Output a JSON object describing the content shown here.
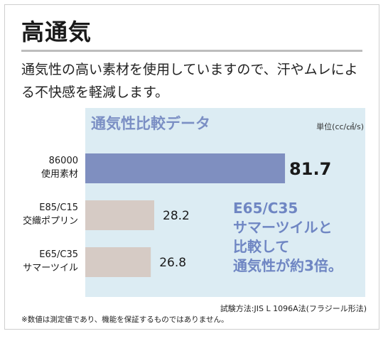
{
  "headline": "高通気",
  "body_text": "通気性の高い素材を使用していますので、汗やムレによる不快感を軽減します。",
  "chart_data": {
    "type": "bar",
    "orientation": "horizontal",
    "title": "通気性比較データ",
    "unit": "単位(cc/㎠/s)",
    "categories": [
      [
        "86000",
        "使用素材"
      ],
      [
        "E85/C15",
        "交織ポプリン"
      ],
      [
        "E65/C35",
        "サマーツイル"
      ]
    ],
    "values": [
      81.7,
      28.2,
      26.8
    ],
    "value_labels": [
      "81.7",
      "28.2",
      "26.8"
    ],
    "bar_colors": [
      "#7f8fc0",
      "#d6cbc5",
      "#d6cbc5"
    ],
    "xlim": [
      0,
      100
    ]
  },
  "callout_lines": [
    "E65/C35",
    "サマーツイルと",
    "比較して",
    "通気性が約3倍。"
  ],
  "test_method": "試験方法:JIS L 1096A法(フラジール形法)",
  "footnote": "※数値は測定値であり、機能を保証するものではありません。"
}
